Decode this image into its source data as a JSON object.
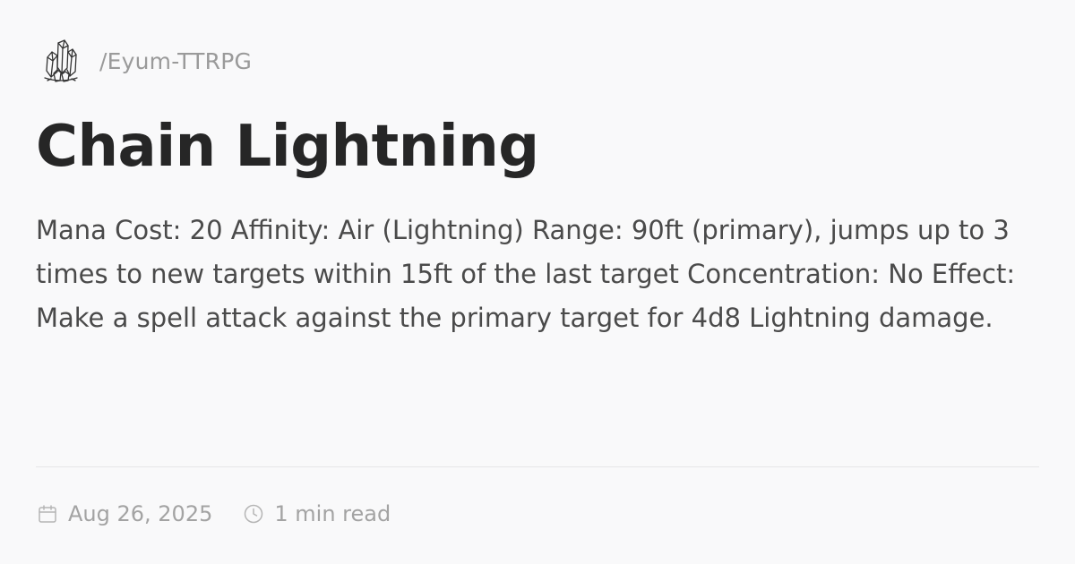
{
  "site": {
    "logo_icon": "crystal-cluster-icon",
    "name": "/Eyum-TTRPG"
  },
  "article": {
    "title": "Chain Lightning",
    "description": "Mana Cost: 20 Affinity: Air (Lightning) Range: 90ft (primary), jumps up to 3 times to new targets within 15ft of the last target Concentration: No Effect: Make a spell attack against the primary target for 4d8 Lightning damage."
  },
  "meta": {
    "date_icon": "calendar-icon",
    "date": "Aug 26, 2025",
    "read_time_icon": "clock-icon",
    "read_time": "1 min read"
  },
  "colors": {
    "background": "#f9f9fa",
    "title": "#262626",
    "body_text": "#4a4a4a",
    "muted_text": "#9a9a9a",
    "divider": "#e6e6e8"
  }
}
